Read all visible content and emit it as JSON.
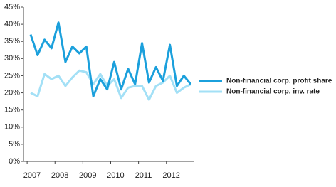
{
  "chart_data": {
    "type": "line",
    "categories": [
      "2007",
      null,
      null,
      null,
      "2008",
      null,
      null,
      null,
      "2009",
      null,
      null,
      null,
      "2010",
      null,
      null,
      null,
      "2011",
      null,
      null,
      null,
      "2012",
      null,
      null,
      null
    ],
    "series": [
      {
        "name": "Non-financial corp. profit share",
        "color": "#1ba0dc",
        "values": [
          37,
          31,
          35.5,
          33,
          40.5,
          29,
          33.5,
          31.5,
          33.5,
          19,
          24,
          21,
          29,
          21,
          27,
          22.5,
          34.5,
          23,
          27.5,
          23.5,
          34,
          22,
          25,
          22.5
        ]
      },
      {
        "name": "Non-financial corp. inv. rate",
        "color": "#a3e0f6",
        "values": [
          20,
          19,
          25.5,
          24,
          25,
          22,
          24.5,
          26.5,
          26,
          22.5,
          25.5,
          22,
          24,
          18.5,
          21.5,
          22,
          22,
          18,
          22,
          23,
          25,
          20,
          21.5,
          22.5
        ]
      }
    ],
    "ylim": [
      0,
      45
    ],
    "yticks": [
      {
        "value": 0,
        "label": "0%"
      },
      {
        "value": 5,
        "label": "5%"
      },
      {
        "value": 10,
        "label": "10%"
      },
      {
        "value": 15,
        "label": "15%"
      },
      {
        "value": 20,
        "label": "20%"
      },
      {
        "value": 25,
        "label": "25%"
      },
      {
        "value": 30,
        "label": "30%"
      },
      {
        "value": 35,
        "label": "35%"
      },
      {
        "value": 40,
        "label": "40%"
      },
      {
        "value": 45,
        "label": "45%"
      }
    ],
    "legend": "right",
    "grid": false
  }
}
